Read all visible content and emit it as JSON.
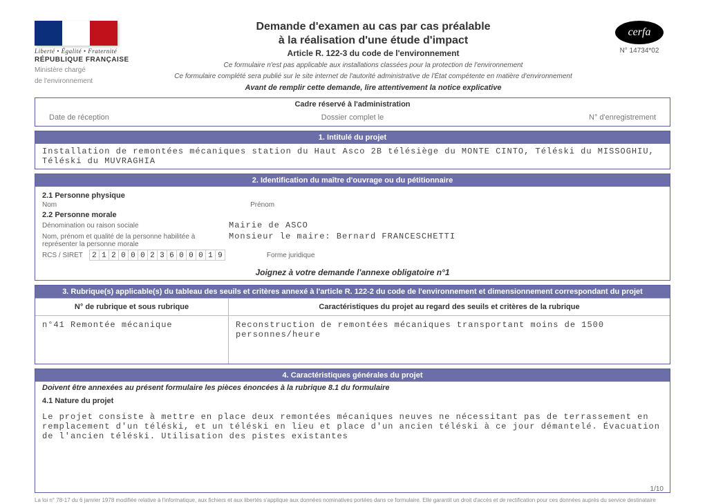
{
  "logo": {
    "flag_colors": [
      "#0b2f7a",
      "#ffffff",
      "#c1121c"
    ],
    "motto": "Liberté • Égalité • Fraternité",
    "republic": "RÉPUBLIQUE FRANÇAISE",
    "ministry1": "Ministère chargé",
    "ministry2": "de l'environnement"
  },
  "cerfa": {
    "label": "cerfa",
    "number": "N° 14734*02"
  },
  "header": {
    "title1": "Demande d'examen au cas par cas préalable",
    "title2": "à la réalisation d'une étude d'impact",
    "article": "Article R. 122-3 du code de l'environnement",
    "note1": "Ce formulaire n'est pas applicable aux installations classées pour la protection de l'environnement",
    "note2": "Ce formulaire complété sera publié sur le site internet de l'autorité administrative de l'État compétente en matière d'environnement",
    "avant": "Avant de remplir cette demande, lire attentivement la notice explicative"
  },
  "admin": {
    "cadre": "Cadre réservé à l'administration",
    "date": "Date de réception",
    "dossier": "Dossier complet le",
    "enreg": "N° d'enregistrement"
  },
  "section1": {
    "bar": "1. Intitulé du projet",
    "text": "Installation de remontées mécaniques station du Haut Asco 2B télésiège du MONTE CINTO, Téléski du MISSOGHIU, Téléski du MUVRAGHIA"
  },
  "section2": {
    "bar": "2. Identification du maître d'ouvrage ou du pétitionnaire",
    "phys": "2.1 Personne physique",
    "nom": "Nom",
    "prenom": "Prénom",
    "morale": "2.2 Personne morale",
    "denom_label": "Dénomination ou raison sociale",
    "denom_val": "Mairie de ASCO",
    "rep_label": "Nom, prénom et qualité de la personne habilitée à représenter la personne morale",
    "rep_val": "Monsieur le maire: Bernard FRANCESCHETTI",
    "rcs_label": "RCS / SIRET",
    "siret": [
      "2",
      "1",
      "2",
      "0",
      "0",
      "0",
      "2",
      "3",
      "6",
      "0",
      "0",
      "0",
      "1",
      "9"
    ],
    "forme": "Forme juridique",
    "joinez": "Joignez à votre demande l'annexe obligatoire n°1"
  },
  "section3": {
    "bar": "3. Rubrique(s) applicable(s) du tableau des seuils et critères annexé à l'article R. 122-2 du code de l'environnement et dimensionnement correspondant du projet",
    "head_left": "N° de rubrique et sous rubrique",
    "head_right": "Caractéristiques du projet au regard des seuils et critères de la rubrique",
    "left_val": "n°41 Remontée mécanique",
    "right_val": "Reconstruction de remontées mécaniques transportant moins de 1500 personnes/heure"
  },
  "section4": {
    "bar": "4. Caractéristiques générales du projet",
    "doivent": "Doivent être annexées au présent formulaire les pièces énoncées à la rubrique 8.1 du formulaire",
    "nature": "4.1 Nature du projet",
    "text": "Le projet consiste à mettre en place deux remontées mécaniques neuves ne nécessitant pas de terrassement en remplacement d'un téléski, et un téléski en lieu et place d'un ancien téléski à ce jour démantelé. Évacuation de l'ancien téléski. Utilisation des pistes existantes"
  },
  "footer": "La loi n° 78-17 du 6 janvier 1978 modifiée relative à l'informatique, aux fichiers et aux libertés s'applique aux données nominatives portées dans ce formulaire. Elle garantit un droit d'accès et de rectification pour ces données auprès du service destinataire",
  "page": "1/10",
  "colors": {
    "bar": "#6b6ea8",
    "border": "#5b5e9c"
  }
}
